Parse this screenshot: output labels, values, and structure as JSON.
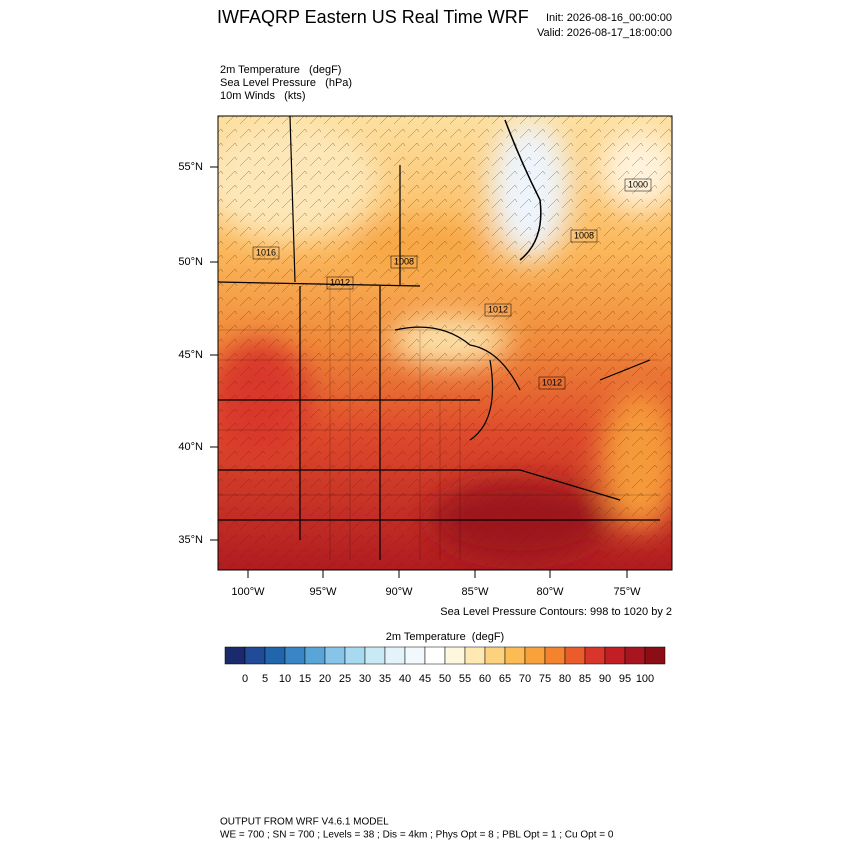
{
  "header": {
    "title": "IWFAQRP Eastern US Real Time WRF",
    "init": "Init: 2026-08-16_00:00:00",
    "valid": "Valid: 2026-08-17_18:00:00"
  },
  "fields": [
    "2m Temperature   (degF)",
    "Sea Level Pressure   (hPa)",
    "10m Winds   (kts)"
  ],
  "map": {
    "lat_labels": [
      "55°N",
      "50°N",
      "45°N",
      "40°N",
      "35°N"
    ],
    "lon_labels": [
      "100°W",
      "95°W",
      "90°W",
      "85°W",
      "80°W",
      "75°W"
    ],
    "contour_labels": [
      "1016",
      "1012",
      "1008",
      "1012",
      "1012",
      "1008",
      "1000"
    ],
    "contour_note": "Sea Level Pressure Contours: 998 to 1020 by 2"
  },
  "colorbar": {
    "title": "2m Temperature  (degF)",
    "ticks": [
      0,
      5,
      10,
      15,
      20,
      25,
      30,
      35,
      40,
      45,
      50,
      55,
      60,
      65,
      70,
      75,
      80,
      85,
      90,
      95,
      100
    ],
    "colors": [
      "#1a2a6c",
      "#1f4b99",
      "#2166ac",
      "#3a85c5",
      "#5aa5d8",
      "#86c5e8",
      "#a7d9f0",
      "#c9e9f5",
      "#e4f3f9",
      "#f2f9fc",
      "#ffffff",
      "#fff6de",
      "#ffe9b3",
      "#fdd27e",
      "#fdbb54",
      "#f9a23c",
      "#f5832d",
      "#ea5c2a",
      "#d9352a",
      "#c41e25",
      "#a9151e",
      "#8c0d16"
    ]
  },
  "footer": [
    "OUTPUT FROM WRF V4.6.1 MODEL",
    "WE = 700 ; SN = 700 ; Levels = 38 ; Dis = 4km ; Phys Opt = 8 ; PBL Opt = 1 ; Cu Opt = 0"
  ]
}
